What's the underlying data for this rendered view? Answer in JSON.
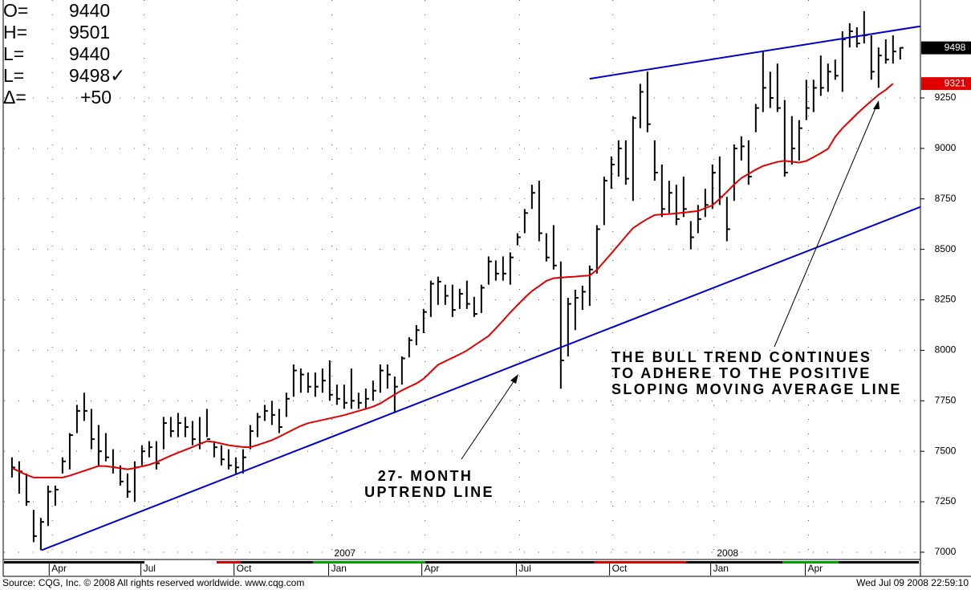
{
  "header": {
    "rows": [
      [
        "O=",
        "9440"
      ],
      [
        "H=",
        "9501"
      ],
      [
        "L=",
        "9440"
      ],
      [
        "L=",
        "9498✓"
      ],
      [
        "Δ=",
        "+50"
      ]
    ]
  },
  "footer": {
    "source": "Source: CQG, Inc. © 2008 All rights reserved worldwide. www.cqg.com",
    "timestamp": "Wed Jul 09 2008 22:59:10"
  },
  "chart_data": {
    "type": "ohlc",
    "annotations": [
      [
        "THE BULL TREND CONTINUES",
        "TO ADHERE TO THE POSITIVE",
        "SLOPING MOVING AVERAGE LINE"
      ],
      [
        "27- MONTH",
        "UPTREND LINE"
      ]
    ],
    "ylim": [
      6964,
      9735
    ],
    "yticks": [
      7000,
      7250,
      7500,
      7750,
      8000,
      8250,
      8500,
      8750,
      9000,
      9250
    ],
    "xlim": [
      -1.1,
      125.8
    ],
    "xticks": [
      {
        "value": 5.6,
        "label": "Apr"
      },
      {
        "value": 18.3,
        "label": "Jul"
      },
      {
        "value": 31.2,
        "label": "Oct"
      },
      {
        "value": 44.3,
        "label": "Jan"
      },
      {
        "value": 57.2,
        "label": "Apr"
      },
      {
        "value": 70.3,
        "label": "Jul"
      },
      {
        "value": 83.2,
        "label": "Oct"
      },
      {
        "value": 97.2,
        "label": "Jan"
      },
      {
        "value": 110.3,
        "label": "Apr"
      }
    ],
    "year_ticks": [
      {
        "value": 46.1,
        "label": "2007"
      },
      {
        "value": 99.1,
        "label": "2008"
      }
    ],
    "grid": true,
    "bars": {
      "color": "#000000",
      "high": [
        7470,
        7450,
        7390,
        7210,
        7170,
        7330,
        7330,
        7470,
        7590,
        7730,
        7790,
        7710,
        7630,
        7590,
        7510,
        7430,
        7390,
        7450,
        7530,
        7550,
        7550,
        7670,
        7670,
        7690,
        7670,
        7650,
        7670,
        7710,
        7550,
        7530,
        7510,
        7470,
        7510,
        7630,
        7690,
        7730,
        7750,
        7710,
        7790,
        7930,
        7910,
        7890,
        7890,
        7910,
        7950,
        7830,
        7830,
        7910,
        7790,
        7810,
        7850,
        7930,
        7930,
        7870,
        7970,
        8065,
        8125,
        8205,
        8345,
        8365,
        8325,
        8325,
        8305,
        8345,
        8265,
        8325,
        8465,
        8445,
        8465,
        8485,
        8580,
        8700,
        8820,
        8840,
        8580,
        8620,
        8440,
        8260,
        8300,
        8320,
        8420,
        8620,
        8860,
        8960,
        9040,
        9040,
        9160,
        9320,
        9380,
        9040,
        8920,
        8840,
        8820,
        8860,
        8640,
        8720,
        8800,
        8920,
        8960,
        8760,
        9020,
        9060,
        9040,
        9220,
        9480,
        9380,
        9420,
        9240,
        9160,
        9140,
        9340,
        9340,
        9460,
        9420,
        9440,
        9580,
        9620,
        9600,
        9680,
        9560,
        9500,
        9540,
        9560,
        9501
      ],
      "low": [
        7370,
        7290,
        7230,
        7050,
        7010,
        7130,
        7230,
        7390,
        7410,
        7590,
        7650,
        7510,
        7430,
        7450,
        7390,
        7330,
        7270,
        7250,
        7430,
        7470,
        7410,
        7510,
        7570,
        7570,
        7570,
        7530,
        7510,
        7570,
        7470,
        7430,
        7410,
        7390,
        7390,
        7510,
        7570,
        7650,
        7630,
        7590,
        7670,
        7770,
        7790,
        7790,
        7770,
        7790,
        7750,
        7730,
        7710,
        7710,
        7710,
        7710,
        7750,
        7790,
        7810,
        7690,
        7830,
        7965,
        8025,
        8085,
        8165,
        8225,
        8225,
        8165,
        8205,
        8205,
        8165,
        8185,
        8325,
        8345,
        8345,
        8325,
        8520,
        8580,
        8700,
        8540,
        8440,
        8400,
        7810,
        7970,
        8100,
        8200,
        8220,
        8380,
        8620,
        8800,
        8860,
        8820,
        8740,
        9100,
        9080,
        8840,
        8660,
        8680,
        8620,
        8660,
        8500,
        8580,
        8660,
        8700,
        8720,
        8540,
        8740,
        8940,
        8820,
        9080,
        9180,
        9200,
        9180,
        8860,
        8920,
        8940,
        9140,
        9180,
        9260,
        9280,
        9340,
        9280,
        9500,
        9500,
        9520,
        9340,
        9300,
        9420,
        9420,
        9440
      ],
      "close": [
        7420,
        7400,
        7250,
        7080,
        7150,
        7300,
        7310,
        7450,
        7580,
        7700,
        7700,
        7560,
        7500,
        7470,
        7420,
        7350,
        7300,
        7420,
        7500,
        7520,
        7440,
        7640,
        7600,
        7640,
        7620,
        7560,
        7540,
        7560,
        7520,
        7460,
        7430,
        7420,
        7470,
        7600,
        7670,
        7700,
        7680,
        7620,
        7760,
        7900,
        7880,
        7820,
        7820,
        7850,
        7780,
        7760,
        7740,
        7750,
        7740,
        7760,
        7800,
        7900,
        7880,
        7820,
        7960,
        8050,
        8100,
        8190,
        8330,
        8340,
        8270,
        8200,
        8280,
        8230,
        8180,
        8310,
        8440,
        8380,
        8380,
        8460,
        8560,
        8680,
        8780,
        8580,
        8460,
        8420,
        7950,
        8230,
        8260,
        8290,
        8400,
        8600,
        8840,
        8920,
        9000,
        8850,
        9150,
        9280,
        9120,
        8880,
        8700,
        8780,
        8650,
        8700,
        8560,
        8650,
        8720,
        8880,
        8760,
        8600,
        9000,
        9010,
        8860,
        9200,
        9300,
        9250,
        9200,
        8880,
        9000,
        9100,
        9200,
        9300,
        9300,
        9380,
        9360,
        9540,
        9580,
        9520,
        9560,
        9380,
        9460,
        9440,
        9480,
        9498
      ]
    },
    "moving_average": {
      "color": "#e00000",
      "values": [
        7417,
        7400,
        7383,
        7370,
        7370,
        7370,
        7370,
        7370,
        7379,
        7391,
        7403,
        7415,
        7427,
        7426,
        7421,
        7416,
        7411,
        7417,
        7425,
        7433,
        7446,
        7462,
        7478,
        7493,
        7507,
        7521,
        7536,
        7550,
        7546,
        7538,
        7530,
        7525,
        7521,
        7520,
        7531,
        7543,
        7555,
        7572,
        7590,
        7608,
        7626,
        7639,
        7647,
        7655,
        7663,
        7671,
        7679,
        7689,
        7700,
        7710,
        7721,
        7737,
        7759,
        7781,
        7802,
        7819,
        7836,
        7859,
        7894,
        7928,
        7946,
        7963,
        7980,
        7999,
        8023,
        8047,
        8071,
        8108,
        8147,
        8187,
        8224,
        8260,
        8293,
        8318,
        8344,
        8357,
        8360,
        8363,
        8365,
        8368,
        8370,
        8398,
        8439,
        8480,
        8522,
        8564,
        8605,
        8629,
        8651,
        8670,
        8673,
        8675,
        8678,
        8682,
        8686,
        8690,
        8704,
        8718,
        8750,
        8785,
        8821,
        8853,
        8874,
        8895,
        8913,
        8923,
        8933,
        8939,
        8934,
        8930,
        8938,
        8957,
        8976,
        8998,
        9057,
        9100,
        9135,
        9171,
        9204,
        9235,
        9266,
        9290,
        9321,
        null
      ]
    },
    "trendlines": [
      {
        "color": "#0000cc",
        "x": [
          4.1,
          125.8
        ],
        "values": [
          7010,
          8710
        ]
      },
      {
        "color": "#0000cc",
        "x": [
          80,
          125.8
        ],
        "values": [
          9345,
          9605
        ]
      }
    ],
    "price_markers": [
      {
        "value": 9498,
        "color": "#000000"
      },
      {
        "value": 9321,
        "color": "#e00000"
      }
    ]
  }
}
